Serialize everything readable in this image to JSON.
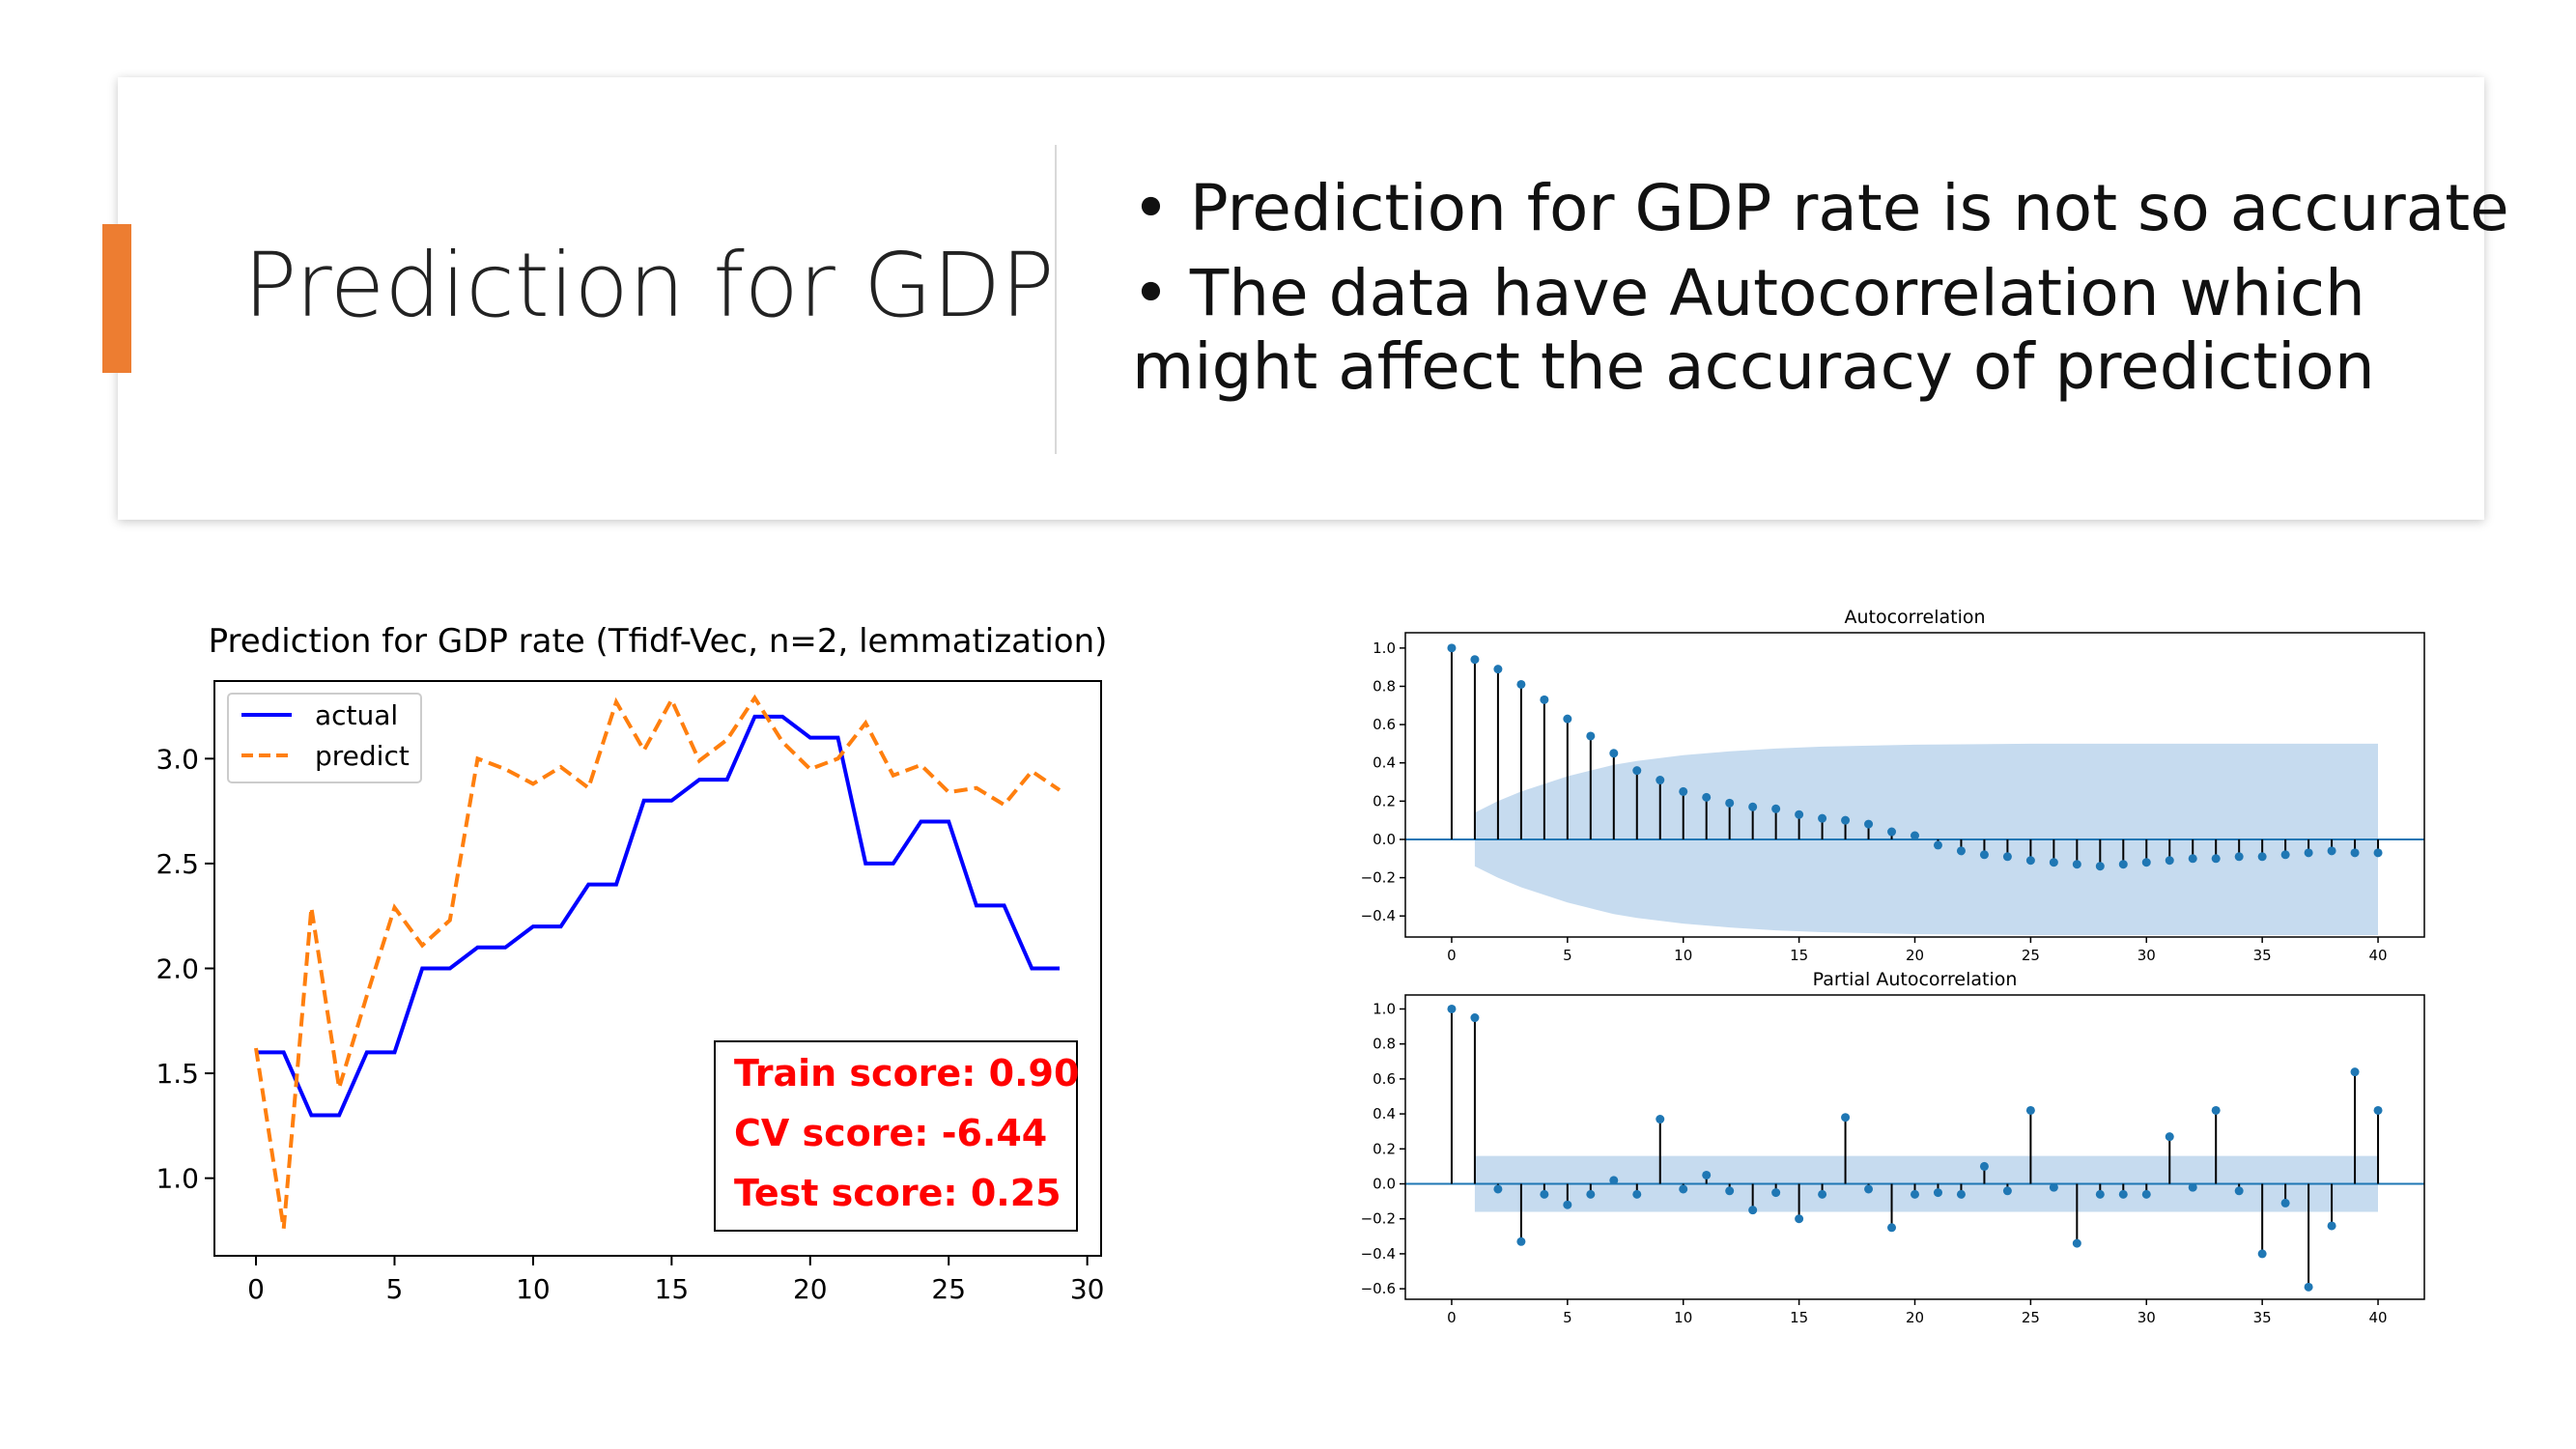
{
  "slide": {
    "title": "Prediction for GDP",
    "bullets": [
      {
        "line1": "• Prediction for GDP rate is not so accurate"
      },
      {
        "line1": "• The data have Autocorrelation which",
        "line2": "might affect the accuracy of prediction"
      }
    ],
    "accent_color": "#ed7d31"
  },
  "chart_data": [
    {
      "type": "line",
      "title": "Prediction for GDP rate (Tfidf-Vec, n=2, lemmatization)",
      "xlabel": "",
      "ylabel": "",
      "xlim": [
        -1.5,
        30.5
      ],
      "ylim": [
        0.63,
        3.37
      ],
      "xticks": [
        0,
        5,
        10,
        15,
        20,
        25,
        30
      ],
      "yticks": [
        1.0,
        1.5,
        2.0,
        2.5,
        3.0
      ],
      "ytick_labels": [
        "1.0",
        "1.5",
        "2.0",
        "2.5",
        "3.0"
      ],
      "x": [
        0,
        1,
        2,
        3,
        4,
        5,
        6,
        7,
        8,
        9,
        10,
        11,
        12,
        13,
        14,
        15,
        16,
        17,
        18,
        19,
        20,
        21,
        22,
        23,
        24,
        25,
        26,
        27,
        28,
        29
      ],
      "series": [
        {
          "name": "actual",
          "color": "#0000ff",
          "style": "solid",
          "values": [
            1.6,
            1.6,
            1.3,
            1.3,
            1.6,
            1.6,
            2.0,
            2.0,
            2.1,
            2.1,
            2.2,
            2.2,
            2.4,
            2.4,
            2.8,
            2.8,
            2.9,
            2.9,
            3.2,
            3.2,
            3.1,
            3.1,
            2.5,
            2.5,
            2.7,
            2.7,
            2.3,
            2.3,
            2.0,
            2.0
          ]
        },
        {
          "name": "predict",
          "color": "#ff7f0e",
          "style": "dashed",
          "values": [
            1.62,
            0.76,
            2.29,
            1.43,
            1.87,
            2.29,
            2.11,
            2.23,
            3.0,
            2.95,
            2.88,
            2.96,
            2.86,
            3.27,
            3.04,
            3.28,
            2.99,
            3.09,
            3.29,
            3.08,
            2.95,
            3.0,
            3.17,
            2.92,
            2.97,
            2.84,
            2.86,
            2.78,
            2.94,
            2.85
          ]
        }
      ],
      "legend_position": "top-left",
      "annotation": {
        "lines": [
          "Train score: 0.90",
          "CV score: -6.44",
          "Test score: 0.25"
        ],
        "color": "#ff0000"
      }
    },
    {
      "type": "bar",
      "title": "Autocorrelation",
      "xlim": [
        -2,
        42
      ],
      "ylim": [
        -0.51,
        1.08
      ],
      "xticks": [
        0,
        5,
        10,
        15,
        20,
        25,
        30,
        35,
        40
      ],
      "yticks": [
        -0.4,
        -0.2,
        0.0,
        0.2,
        0.4,
        0.6,
        0.8,
        1.0
      ],
      "ytick_labels": [
        "−0.4",
        "−0.2",
        "0.0",
        "0.2",
        "0.4",
        "0.6",
        "0.8",
        "1.0"
      ],
      "lags": [
        0,
        1,
        2,
        3,
        4,
        5,
        6,
        7,
        8,
        9,
        10,
        11,
        12,
        13,
        14,
        15,
        16,
        17,
        18,
        19,
        20,
        21,
        22,
        23,
        24,
        25,
        26,
        27,
        28,
        29,
        30,
        31,
        32,
        33,
        34,
        35,
        36,
        37,
        38,
        39,
        40
      ],
      "values": [
        1.0,
        0.94,
        0.89,
        0.81,
        0.73,
        0.63,
        0.54,
        0.45,
        0.36,
        0.31,
        0.25,
        0.22,
        0.19,
        0.17,
        0.16,
        0.13,
        0.11,
        0.1,
        0.08,
        0.04,
        0.02,
        -0.03,
        -0.06,
        -0.08,
        -0.09,
        -0.11,
        -0.12,
        -0.13,
        -0.14,
        -0.13,
        -0.12,
        -0.11,
        -0.1,
        -0.1,
        -0.09,
        -0.09,
        -0.08,
        -0.07,
        -0.06,
        -0.07,
        -0.07
      ],
      "confidence_band": {
        "lags": [
          1,
          2,
          3,
          4,
          5,
          6,
          7,
          8,
          10,
          12,
          14,
          16,
          18,
          20,
          25,
          30,
          35,
          40
        ],
        "upper": [
          0.14,
          0.2,
          0.25,
          0.29,
          0.33,
          0.36,
          0.39,
          0.41,
          0.44,
          0.46,
          0.475,
          0.485,
          0.49,
          0.495,
          0.5,
          0.5,
          0.5,
          0.5
        ]
      },
      "marker_color": "#1f77b4",
      "band_color": "#c6dbef"
    },
    {
      "type": "bar",
      "title": "Partial Autocorrelation",
      "xlim": [
        -2,
        42
      ],
      "ylim": [
        -0.66,
        1.08
      ],
      "xticks": [
        0,
        5,
        10,
        15,
        20,
        25,
        30,
        35,
        40
      ],
      "yticks": [
        -0.6,
        -0.4,
        -0.2,
        0.0,
        0.2,
        0.4,
        0.6,
        0.8,
        1.0
      ],
      "ytick_labels": [
        "−0.6",
        "−0.4",
        "−0.2",
        "0.0",
        "0.2",
        "0.4",
        "0.6",
        "0.8",
        "1.0"
      ],
      "lags": [
        0,
        1,
        2,
        3,
        4,
        5,
        6,
        7,
        8,
        9,
        10,
        11,
        12,
        13,
        14,
        15,
        16,
        17,
        18,
        19,
        20,
        21,
        22,
        23,
        24,
        25,
        26,
        27,
        28,
        29,
        30,
        31,
        32,
        33,
        34,
        35,
        36,
        37,
        38,
        39,
        40
      ],
      "values": [
        1.0,
        0.95,
        -0.03,
        -0.33,
        -0.06,
        -0.12,
        -0.06,
        0.02,
        -0.06,
        0.37,
        -0.03,
        0.05,
        -0.04,
        -0.15,
        -0.05,
        -0.2,
        -0.06,
        0.38,
        -0.03,
        -0.25,
        -0.06,
        -0.05,
        -0.06,
        0.1,
        -0.04,
        0.42,
        -0.02,
        -0.34,
        -0.06,
        -0.06,
        -0.06,
        0.27,
        -0.02,
        0.42,
        -0.04,
        -0.4,
        -0.11,
        -0.59,
        -0.24,
        0.64,
        0.42
      ],
      "confidence_band": {
        "lags": [
          1,
          40
        ],
        "upper": [
          0.16,
          0.16
        ]
      },
      "marker_color": "#1f77b4",
      "band_color": "#c6dbef"
    }
  ]
}
